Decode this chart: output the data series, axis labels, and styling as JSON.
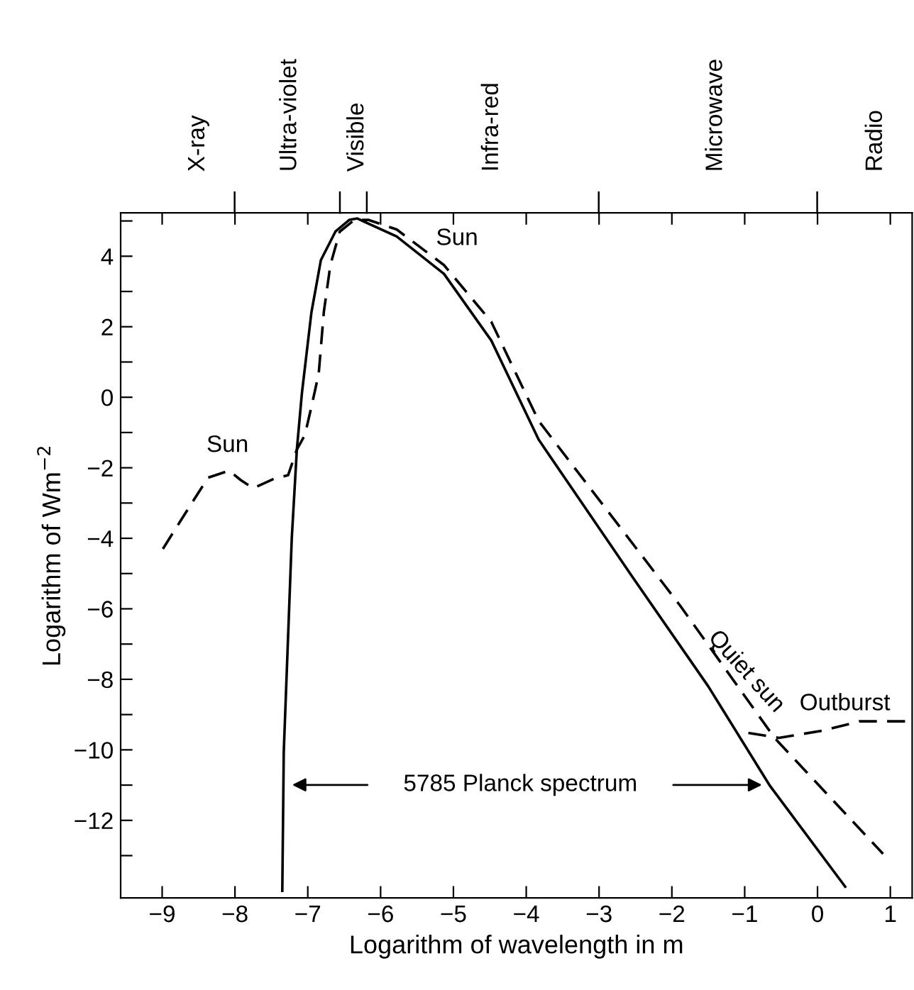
{
  "chart_data": {
    "type": "line",
    "xlabel": "Logarithm of wavelength in m",
    "ylabel": "Logarithm of Wm$^{−2}$",
    "xlim": [
      -9.57,
      1.3
    ],
    "ylim": [
      -14.2,
      5.23
    ],
    "xticks": [
      -9,
      -8,
      -7,
      -6,
      -5,
      -4,
      -3,
      -2,
      -1,
      0,
      1
    ],
    "yticks": [
      {
        "value": -13,
        "label": null
      },
      -12,
      {
        "value": -11,
        "label": null
      },
      -10,
      {
        "value": -9,
        "label": null
      },
      -8,
      {
        "value": -7,
        "label": null
      },
      -6,
      {
        "value": -5,
        "label": null
      },
      -4,
      {
        "value": -3,
        "label": null
      },
      -2,
      {
        "value": -1,
        "label": null
      },
      0,
      {
        "value": 1,
        "label": null
      },
      2,
      {
        "value": 3,
        "label": null
      },
      4,
      {
        "value": 5,
        "label": null
      }
    ],
    "grid": false,
    "legend": false,
    "series": [
      {
        "color": "#000000",
        "line_style": "solid",
        "x": [
          -7.35,
          -7.33,
          -7.22,
          -7.15,
          -7.08,
          -6.95,
          -6.82,
          -6.62,
          -6.43,
          -6.32,
          -5.78,
          -5.13,
          -4.48,
          -3.83,
          -2.54,
          -1.5,
          -0.66,
          0.38
        ],
        "values": [
          -14.0,
          -10.06,
          -4.0,
          -1.48,
          0.13,
          2.41,
          3.89,
          4.7,
          5.03,
          5.07,
          4.56,
          3.5,
          1.61,
          -1.2,
          -5.1,
          -8.2,
          -11.0,
          -13.88
        ]
      },
      {
        "color": "#000000",
        "line_style": "dashed",
        "x": [
          -8.99,
          -8.7,
          -8.37,
          -8.08,
          -7.92,
          -7.75,
          -7.46,
          -7.27,
          -7.15,
          -7.04,
          -6.95,
          -6.85,
          -6.78,
          -6.69,
          -6.56,
          -6.36,
          -6.17,
          -5.78,
          -5.13,
          -4.48,
          -3.83,
          -1.89,
          -0.59,
          0.9
        ],
        "values": [
          -4.3,
          -3.35,
          -2.28,
          -2.08,
          -2.35,
          -2.58,
          -2.31,
          -2.21,
          -1.48,
          -1.07,
          -0.27,
          0.67,
          2.41,
          3.75,
          4.7,
          5.03,
          5.03,
          4.76,
          3.75,
          2.14,
          -0.67,
          -5.9,
          -9.66,
          -12.95
        ]
      },
      {
        "color": "#000000",
        "line_style": "dashed",
        "x": [
          -0.95,
          -0.53,
          0.06,
          0.58,
          1.03,
          1.23
        ],
        "values": [
          -9.52,
          -9.66,
          -9.46,
          -9.19,
          -9.19,
          -9.19
        ]
      }
    ],
    "annotations": [
      "Sun",
      "Sun",
      "Quiet sun",
      "Outburst",
      "5785 Planck spectrum",
      "X-ray",
      "Ultra-violet",
      "Visible",
      "Infra-red",
      "Microwave",
      "Radio"
    ]
  }
}
